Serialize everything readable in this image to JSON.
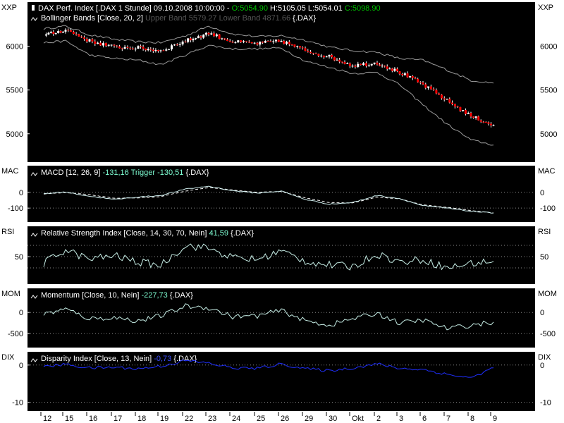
{
  "colors": {
    "background": "#000000",
    "frame": "#ffffff",
    "candle_up": "#ffffff",
    "candle_down": "#ff0000",
    "bollinger": "#9a9a9a",
    "macd_line": "#cfeeee",
    "macd_trigger": "#ffffff",
    "rsi_line": "#c8f0e8",
    "mom_line": "#c8f0e8",
    "dix_line": "#1f2fff",
    "ref_dots": "#8a8a8a",
    "legend_text": "#ffffff",
    "legend_open": "#00c800",
    "legend_close": "#00c800",
    "legend_upper_lower": "#555555",
    "legend_trigger": "#7fffd4",
    "legend_value_cyan": "#7fffd4",
    "legend_value_blue": "#3a4dff"
  },
  "x_axis": {
    "ticks": [
      "12",
      "15",
      "16",
      "17",
      "18",
      "19",
      "22",
      "23",
      "24",
      "25",
      "26",
      "29",
      "30",
      "Okt",
      "2",
      "3",
      "6",
      "7",
      "8",
      "9"
    ]
  },
  "panels": [
    {
      "id": "price",
      "side_label": "XXP",
      "ylim": [
        4700,
        6480
      ],
      "ticks": [
        5000,
        5500,
        6000
      ],
      "tick_labels": [
        "5000",
        "5500",
        "6000"
      ],
      "legend": {
        "line1_prefix": "DAX Perf. Index [.DAX  1 Stunde] 09.10.2008 10:00:00 - ",
        "line1_open": "O:5054.90",
        "line1_mid": " H:5105.05 L:5054.01 ",
        "line1_close": "C:5098.90",
        "line2_prefix": "Bollinger Bands [Close, 20, 2] ",
        "line2_bands": "Upper Band 5579.27 Lower Band 4871.66",
        "line2_suffix": " {.DAX}"
      }
    },
    {
      "id": "macd",
      "side_label": "MAC",
      "ylim": [
        -175,
        155
      ],
      "ticks": [
        0,
        -100
      ],
      "tick_labels": [
        "0",
        "-100"
      ],
      "legend": {
        "prefix": "MACD [12, 26, 9] ",
        "value": "-131,16",
        "trigger_label": " Trigger ",
        "trigger_value": "-130,51",
        "suffix": " {.DAX}"
      }
    },
    {
      "id": "rsi",
      "side_label": "RSI",
      "ylim": [
        5,
        100
      ],
      "ticks": [
        50
      ],
      "tick_labels": [
        "50"
      ],
      "ref_lines": [
        30,
        70
      ],
      "legend": {
        "prefix": "Relative Strength Index [Close, 14, 30, 70, Nein] ",
        "value": "41,59",
        "suffix": " {.DAX}"
      }
    },
    {
      "id": "mom",
      "side_label": "MOM",
      "ylim": [
        -780,
        520
      ],
      "ticks": [
        0,
        -500
      ],
      "tick_labels": [
        "0",
        "-500"
      ],
      "legend": {
        "prefix": "Momentum [Close, 10, Nein] ",
        "value": "-227,73",
        "suffix": " {.DAX}"
      }
    },
    {
      "id": "dix",
      "side_label": "DIX",
      "ylim": [
        -11.8,
        3.0
      ],
      "ticks": [
        0,
        -10
      ],
      "tick_labels": [
        "0",
        "-10"
      ],
      "legend": {
        "prefix": "Disparity Index [Close, 13, Nein] ",
        "value": "-0,73",
        "suffix": " {.DAX}"
      }
    }
  ],
  "chart_data": {
    "type": "line",
    "instrument": "DAX Perf. Index",
    "interval": "1 Stunde",
    "x": [
      "12",
      "15",
      "16",
      "17",
      "18",
      "19",
      "22",
      "23",
      "24",
      "25",
      "26",
      "29",
      "30",
      "Okt",
      "2",
      "3",
      "6",
      "7",
      "8",
      "9"
    ],
    "price_close": [
      6120,
      6190,
      6060,
      5990,
      5980,
      5950,
      6060,
      6150,
      6050,
      6030,
      6060,
      5950,
      5880,
      5780,
      5810,
      5700,
      5560,
      5380,
      5200,
      5098.9
    ],
    "bollinger_upper": [
      6200,
      6230,
      6130,
      6080,
      6050,
      6040,
      6120,
      6230,
      6140,
      6110,
      6120,
      6070,
      5990,
      5950,
      5930,
      5860,
      5840,
      5730,
      5610,
      5579.27
    ],
    "bollinger_lower": [
      6040,
      6060,
      5900,
      5860,
      5840,
      5790,
      5900,
      6010,
      5970,
      5970,
      5980,
      5830,
      5760,
      5690,
      5700,
      5560,
      5330,
      5110,
      4930,
      4871.66
    ],
    "macd": [
      -8,
      2,
      -25,
      -45,
      -30,
      -20,
      20,
      38,
      10,
      -5,
      8,
      -45,
      -75,
      -65,
      -20,
      -40,
      -85,
      -100,
      -120,
      -131.16
    ],
    "macd_trigger": [
      -10,
      -2,
      -15,
      -38,
      -35,
      -28,
      8,
      30,
      15,
      0,
      5,
      -35,
      -65,
      -68,
      -30,
      -42,
      -80,
      -95,
      -115,
      -130.51
    ],
    "rsi": [
      38,
      62,
      45,
      52,
      40,
      35,
      70,
      65,
      48,
      45,
      60,
      42,
      35,
      32,
      55,
      40,
      45,
      30,
      38,
      41.59
    ],
    "momentum": [
      -40,
      80,
      -150,
      -120,
      -200,
      -80,
      150,
      110,
      -100,
      -80,
      50,
      -200,
      -300,
      -150,
      -20,
      -250,
      -180,
      -380,
      -300,
      -227.73
    ],
    "disparity_index": [
      -0.5,
      0.2,
      -0.8,
      -0.6,
      -1.0,
      -0.3,
      1.2,
      0.5,
      -0.8,
      -0.9,
      0.3,
      -1.0,
      -1.5,
      -0.8,
      0.3,
      -0.9,
      -1.2,
      -2.5,
      -3.5,
      -0.73
    ]
  }
}
